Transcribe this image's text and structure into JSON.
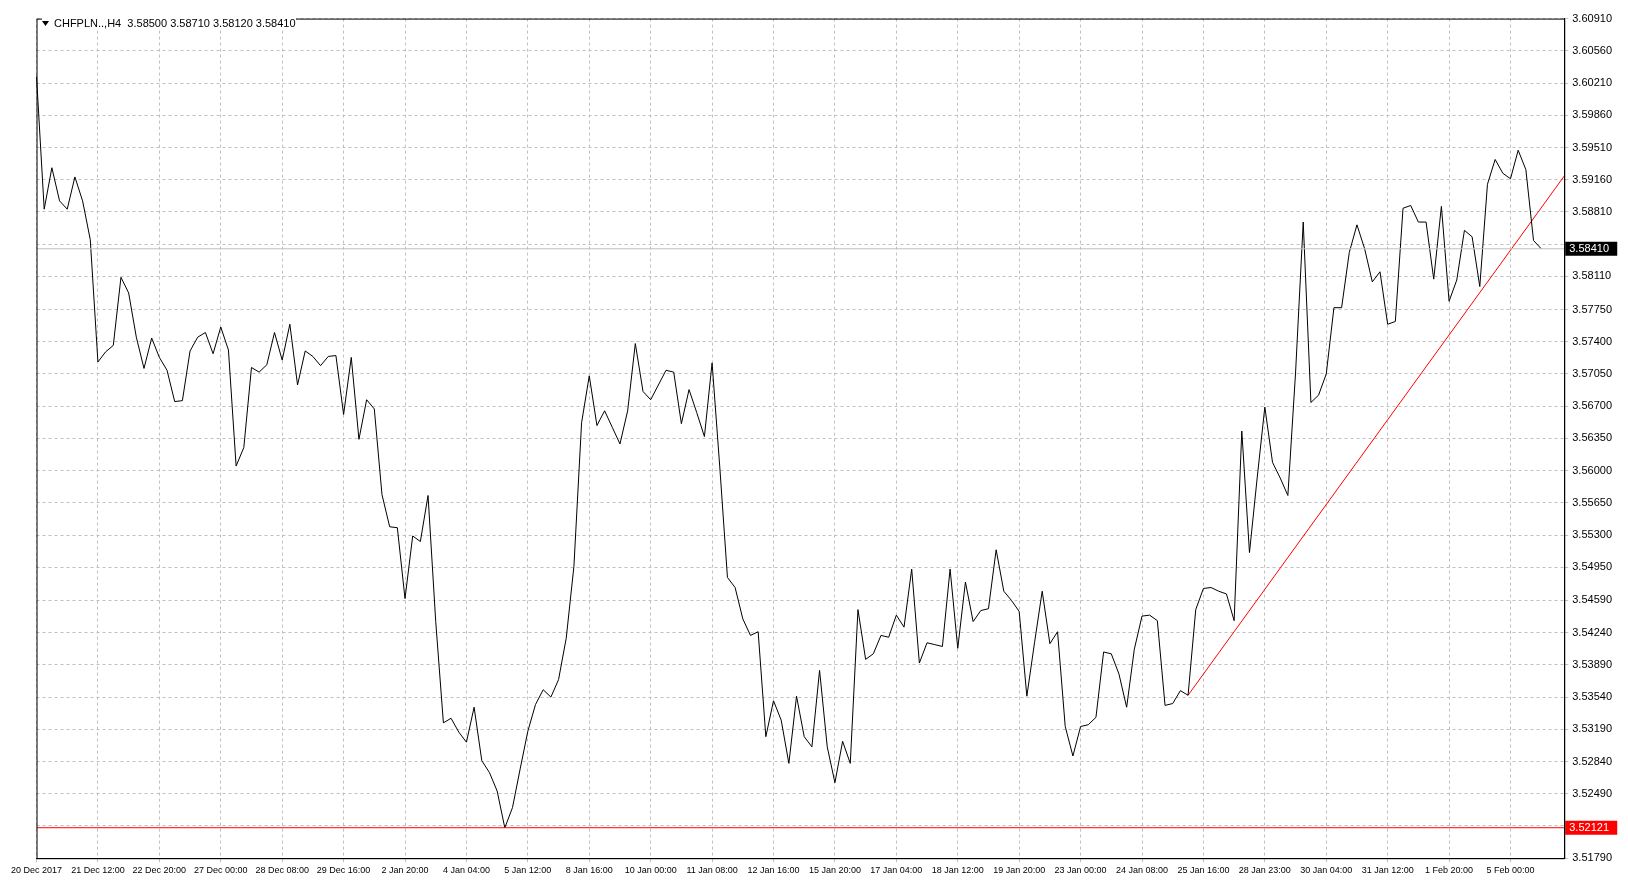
{
  "chart_data": {
    "type": "line",
    "title": "CHFPLN..,H4  3.58500 3.58710 3.58120 3.58410",
    "marker": "none",
    "line_style": "solid",
    "grid": true,
    "legend": false,
    "categories": [
      "20 Dec 2017",
      null,
      null,
      null,
      null,
      null,
      null,
      null,
      "21 Dec 12:00",
      null,
      null,
      null,
      null,
      null,
      null,
      null,
      "22 Dec 20:00",
      null,
      null,
      null,
      null,
      null,
      null,
      null,
      "27 Dec 00:00",
      null,
      null,
      null,
      null,
      null,
      null,
      null,
      "28 Dec 08:00",
      null,
      null,
      null,
      null,
      null,
      null,
      null,
      "29 Dec 16:00",
      null,
      null,
      null,
      null,
      null,
      null,
      null,
      "2 Jan 20:00",
      null,
      null,
      null,
      null,
      null,
      null,
      null,
      "4 Jan 04:00",
      null,
      null,
      null,
      null,
      null,
      null,
      null,
      "5 Jan 12:00",
      null,
      null,
      null,
      null,
      null,
      null,
      null,
      "8 Jan 16:00",
      null,
      null,
      null,
      null,
      null,
      null,
      null,
      "10 Jan 00:00",
      null,
      null,
      null,
      null,
      null,
      null,
      null,
      "11 Jan 08:00",
      null,
      null,
      null,
      null,
      null,
      null,
      null,
      "12 Jan 16:00",
      null,
      null,
      null,
      null,
      null,
      null,
      null,
      "15 Jan 20:00",
      null,
      null,
      null,
      null,
      null,
      null,
      null,
      "17 Jan 04:00",
      null,
      null,
      null,
      null,
      null,
      null,
      null,
      "18 Jan 12:00",
      null,
      null,
      null,
      null,
      null,
      null,
      null,
      "19 Jan 20:00",
      null,
      null,
      null,
      null,
      null,
      null,
      null,
      "23 Jan 00:00",
      null,
      null,
      null,
      null,
      null,
      null,
      null,
      "24 Jan 08:00",
      null,
      null,
      null,
      null,
      null,
      null,
      null,
      "25 Jan 16:00",
      null,
      null,
      null,
      null,
      null,
      null,
      null,
      "28 Jan 23:00",
      null,
      null,
      null,
      null,
      null,
      null,
      null,
      "30 Jan 04:00",
      null,
      null,
      null,
      null,
      null,
      null,
      null,
      "31 Jan 12:00",
      null,
      null,
      null,
      null,
      null,
      null,
      null,
      "1 Feb 20:00",
      null,
      null,
      null,
      null,
      null,
      null,
      null,
      "5 Feb 00:00",
      null,
      null,
      null,
      null,
      null,
      null,
      null
    ],
    "ylim": [
      3.5179,
      3.6091
    ],
    "yticks": [
      {
        "value": 3.6091,
        "label": "3.60910"
      },
      {
        "value": 3.6056,
        "label": "3.60560"
      },
      {
        "value": 3.6021,
        "label": "3.60210"
      },
      {
        "value": 3.5986,
        "label": "3.59860"
      },
      {
        "value": 3.5951,
        "label": "3.59510"
      },
      {
        "value": 3.5916,
        "label": "3.59160"
      },
      {
        "value": 3.5881,
        "label": "3.58810"
      },
      {
        "value": 3.5846,
        "label": null
      },
      {
        "value": 3.5811,
        "label": "3.58110"
      },
      {
        "value": 3.5775,
        "label": "3.57750"
      },
      {
        "value": 3.574,
        "label": "3.57400"
      },
      {
        "value": 3.5705,
        "label": "3.57050"
      },
      {
        "value": 3.567,
        "label": "3.56700"
      },
      {
        "value": 3.5635,
        "label": "3.56350"
      },
      {
        "value": 3.56,
        "label": "3.56000"
      },
      {
        "value": 3.5565,
        "label": "3.55650"
      },
      {
        "value": 3.553,
        "label": "3.55300"
      },
      {
        "value": 3.5495,
        "label": "3.54950"
      },
      {
        "value": 3.5459,
        "label": "3.54590"
      },
      {
        "value": 3.5424,
        "label": "3.54240"
      },
      {
        "value": 3.5389,
        "label": "3.53890"
      },
      {
        "value": 3.5354,
        "label": "3.53540"
      },
      {
        "value": 3.5319,
        "label": "3.53190"
      },
      {
        "value": 3.5284,
        "label": "3.52840"
      },
      {
        "value": 3.5249,
        "label": "3.52490"
      },
      {
        "value": 3.5214,
        "label": null
      },
      {
        "value": 3.5179,
        "label": "3.51790"
      }
    ],
    "ref_lines": [
      {
        "axis": "y",
        "value": 3.5841,
        "label": "3.58410",
        "color": "#c0c0c0"
      },
      {
        "axis": "y",
        "value": 3.52121,
        "label": "3.52121",
        "color": "#ff0000"
      }
    ],
    "series": [
      {
        "type": "line",
        "color": "#000000",
        "values": [
          3.6028,
          3.5884,
          3.5929,
          3.5893,
          3.5884,
          3.5919,
          3.5893,
          3.5851,
          3.5718,
          3.5729,
          3.5736,
          3.581,
          3.5793,
          3.5745,
          3.5711,
          3.5744,
          3.5723,
          3.5709,
          3.5675,
          3.5676,
          3.573,
          3.5745,
          3.575,
          3.5727,
          3.5756,
          3.5731,
          3.5605,
          3.5625,
          3.5712,
          3.5707,
          3.5715,
          3.575,
          3.572,
          3.5759,
          3.5693,
          3.573,
          3.5724,
          3.5714,
          3.5724,
          3.5725,
          3.5661,
          3.5723,
          3.5634,
          3.5677,
          3.5667,
          3.5574,
          3.5539,
          3.5538,
          3.5461,
          3.5529,
          3.5523,
          3.5573,
          3.5436,
          3.5326,
          3.5331,
          3.5316,
          3.5305,
          3.5343,
          3.5285,
          3.5272,
          3.5252,
          3.5212,
          3.5234,
          3.5276,
          3.5317,
          3.5346,
          3.5362,
          3.5354,
          3.5373,
          3.5418,
          3.5496,
          3.5652,
          3.5703,
          3.5649,
          3.5665,
          3.5647,
          3.5629,
          3.5665,
          3.5738,
          3.5686,
          3.5677,
          3.5693,
          3.5709,
          3.5707,
          3.5651,
          3.5688,
          3.5663,
          3.5637,
          3.5717,
          3.5604,
          3.5484,
          3.5473,
          3.5439,
          3.5421,
          3.5425,
          3.5311,
          3.535,
          3.5329,
          3.5282,
          3.5355,
          3.5311,
          3.53,
          3.5383,
          3.53,
          3.5261,
          3.5306,
          3.5282,
          3.5449,
          3.5395,
          3.5401,
          3.5421,
          3.5419,
          3.5443,
          3.543,
          3.5493,
          3.5391,
          3.5413,
          3.5411,
          3.5409,
          3.5493,
          3.5407,
          3.5479,
          3.5436,
          3.5448,
          3.545,
          3.5514,
          3.5469,
          3.5459,
          3.5447,
          3.5355,
          3.5413,
          3.5469,
          3.5412,
          3.5425,
          3.5322,
          3.529,
          3.5322,
          3.5324,
          3.5332,
          3.5403,
          3.5401,
          3.5379,
          3.5343,
          3.5406,
          3.5442,
          3.5443,
          3.5437,
          3.5345,
          3.5347,
          3.5361,
          3.5356,
          3.5449,
          3.5472,
          3.5473,
          3.5469,
          3.5466,
          3.5437,
          3.5643,
          3.5511,
          3.5592,
          3.5669,
          3.5609,
          3.5592,
          3.5573,
          3.5706,
          3.587,
          3.5674,
          3.5682,
          3.5705,
          3.5777,
          3.5777,
          3.5837,
          3.5867,
          3.5841,
          3.5805,
          3.5816,
          3.5759,
          3.5762,
          3.5885,
          3.5888,
          3.587,
          3.587,
          3.5808,
          3.5887,
          3.5784,
          3.5807,
          3.5861,
          3.5854,
          3.58,
          3.5911,
          3.5938,
          3.5923,
          3.5917,
          3.5948,
          3.5927,
          3.585,
          3.5841,
          null,
          null,
          null
        ]
      },
      {
        "type": "line",
        "color": "#ff0000",
        "values": [
          null,
          null,
          null,
          null,
          null,
          null,
          null,
          null,
          null,
          null,
          null,
          null,
          null,
          null,
          null,
          null,
          null,
          null,
          null,
          null,
          null,
          null,
          null,
          null,
          null,
          null,
          null,
          null,
          null,
          null,
          null,
          null,
          null,
          null,
          null,
          null,
          null,
          null,
          null,
          null,
          null,
          null,
          null,
          null,
          null,
          null,
          null,
          null,
          null,
          null,
          null,
          null,
          null,
          null,
          null,
          null,
          null,
          null,
          null,
          null,
          null,
          null,
          null,
          null,
          null,
          null,
          null,
          null,
          null,
          null,
          null,
          null,
          null,
          null,
          null,
          null,
          null,
          null,
          null,
          null,
          null,
          null,
          null,
          null,
          null,
          null,
          null,
          null,
          null,
          null,
          null,
          null,
          null,
          null,
          null,
          null,
          null,
          null,
          null,
          null,
          null,
          null,
          null,
          null,
          null,
          null,
          null,
          null,
          null,
          null,
          null,
          null,
          null,
          null,
          null,
          null,
          null,
          null,
          null,
          null,
          null,
          null,
          null,
          null,
          null,
          null,
          null,
          null,
          null,
          null,
          null,
          null,
          null,
          null,
          null,
          null,
          null,
          null,
          null,
          null,
          null,
          null,
          null,
          null,
          null,
          null,
          null,
          null,
          null,
          null,
          3.5356,
          null,
          null,
          null,
          null,
          null,
          null,
          null,
          null,
          null,
          null,
          null,
          null,
          null,
          null,
          null,
          null,
          null,
          null,
          null,
          null,
          null,
          null,
          null,
          null,
          null,
          null,
          null,
          null,
          null,
          null,
          null,
          null,
          null,
          null,
          null,
          null,
          null,
          null,
          null,
          null,
          null,
          null,
          null,
          null,
          null,
          null,
          null,
          null,
          3.592
        ]
      }
    ]
  }
}
